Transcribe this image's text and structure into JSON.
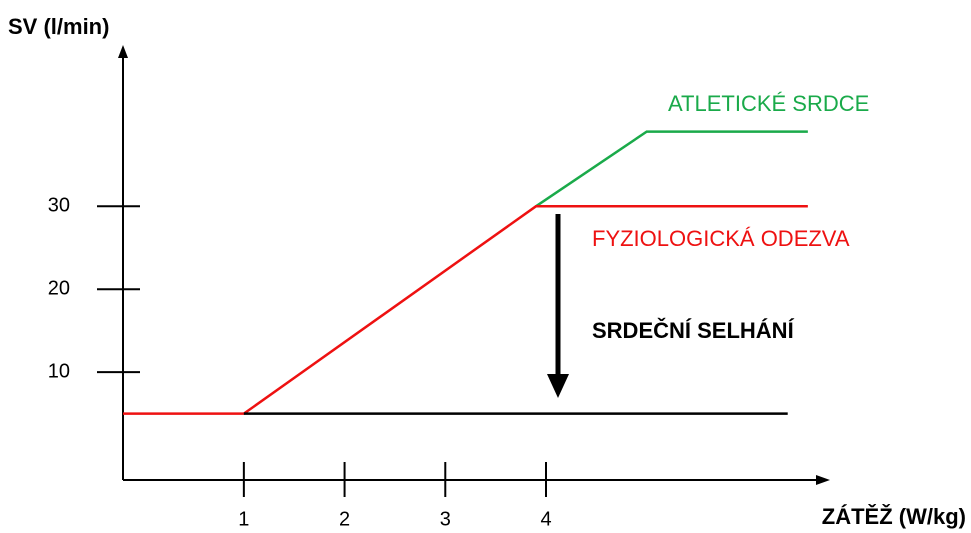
{
  "chart_data": {
    "type": "line",
    "y_label": "SV (l/min)",
    "x_label": "ZÁTĚŽ (W/kg)",
    "xlim": [
      -0.2,
      6.8
    ],
    "xticks": [
      1,
      2,
      3,
      4
    ],
    "ylim": [
      -3,
      48
    ],
    "yticks": [
      10,
      20,
      30
    ],
    "series": [
      {
        "name": "ATLETICKÉ SRDCE",
        "color": "#1aaa4a",
        "x": [
          3.9,
          5.0,
          6.6
        ],
        "values": [
          30,
          39,
          39
        ]
      },
      {
        "name": "FYZIOLOGICKÁ ODEZVA",
        "color": "#ee1111",
        "x": [
          -0.2,
          1,
          3.9,
          6.6
        ],
        "values": [
          5,
          5,
          30,
          30
        ]
      },
      {
        "color": "#000000",
        "x": [
          1,
          6.4
        ],
        "values": [
          5,
          5
        ]
      }
    ],
    "annotation": "SRDEČNÍ SELHÁNÍ"
  }
}
